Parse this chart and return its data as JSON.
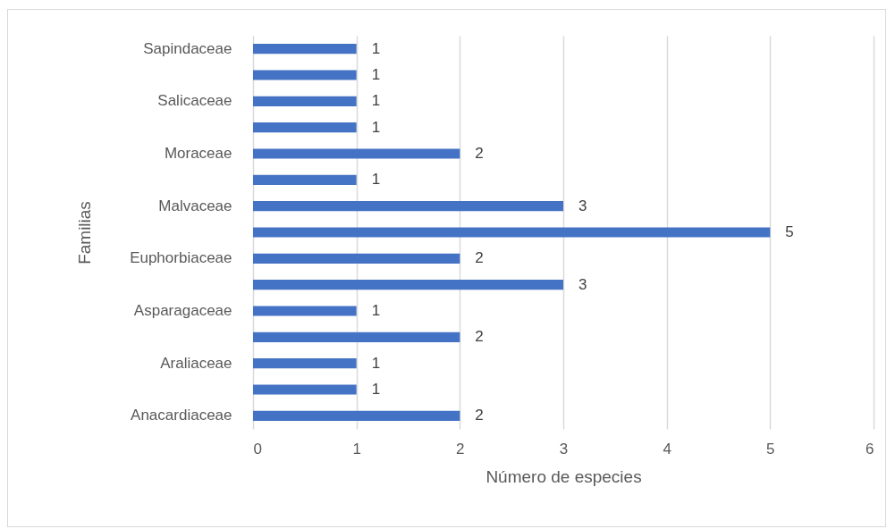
{
  "chart_data": {
    "type": "bar",
    "orientation": "horizontal",
    "xlabel": "Número de especies",
    "ylabel": "Familias",
    "categories": [
      "Sapindaceae",
      null,
      "Salicaceae",
      null,
      "Moraceae",
      null,
      "Malvaceae",
      null,
      "Euphorbiaceae",
      null,
      "Asparagaceae",
      null,
      "Araliaceae",
      null,
      "Anacardiaceae"
    ],
    "values": [
      1,
      1,
      1,
      1,
      2,
      1,
      3,
      5,
      2,
      3,
      1,
      2,
      1,
      1,
      2
    ],
    "color": "#4472c4",
    "xlim": [
      0,
      6
    ],
    "xticks": [
      0,
      1,
      2,
      3,
      4,
      5,
      6
    ],
    "grid": "x",
    "data_labels": true
  }
}
